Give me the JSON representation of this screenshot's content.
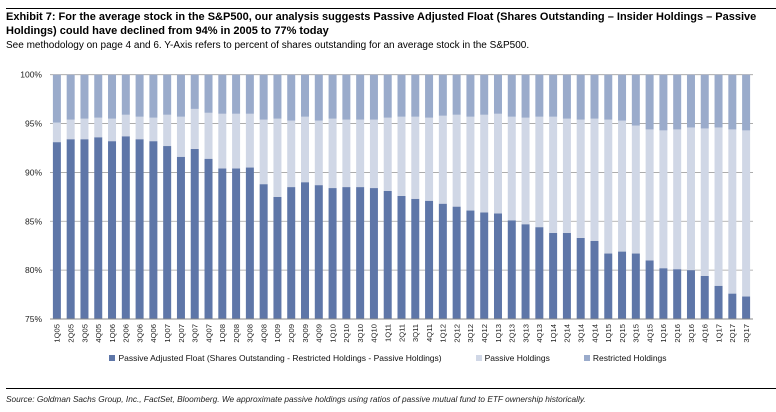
{
  "title": "Exhibit 7: For the average stock in the S&P500, our analysis suggests Passive Adjusted Float (Shares Outstanding – Insider Holdings – Passive Holdings) could have declined from 94% in 2005 to 77% today",
  "subtitle": "See methodology on page 4 and 6. Y-Axis refers to percent of shares outstanding for an average stock in the S&P500.",
  "source": "Source: Goldman Sachs Group, Inc., FactSet, Bloomberg. We approximate passive holdings using ratios of passive mutual fund to ETF ownership historically.",
  "chart_data": {
    "type": "bar",
    "stacked": true,
    "ylim": [
      75,
      100
    ],
    "yticks": [
      "75%",
      "80%",
      "85%",
      "90%",
      "95%",
      "100%"
    ],
    "grid": true,
    "legend_position": "bottom",
    "categories": [
      "1Q05",
      "2Q05",
      "3Q05",
      "4Q05",
      "1Q06",
      "2Q06",
      "3Q06",
      "4Q06",
      "1Q07",
      "2Q07",
      "3Q07",
      "4Q07",
      "1Q08",
      "2Q08",
      "3Q08",
      "4Q08",
      "1Q09",
      "2Q09",
      "3Q09",
      "4Q09",
      "1Q10",
      "2Q10",
      "3Q10",
      "4Q10",
      "1Q11",
      "2Q11",
      "3Q11",
      "4Q11",
      "1Q12",
      "2Q12",
      "3Q12",
      "4Q12",
      "1Q13",
      "2Q13",
      "3Q13",
      "4Q13",
      "1Q14",
      "2Q14",
      "3Q14",
      "4Q14",
      "1Q15",
      "2Q15",
      "3Q15",
      "4Q15",
      "1Q16",
      "2Q16",
      "3Q16",
      "4Q16",
      "1Q17",
      "2Q17",
      "3Q17"
    ],
    "series": [
      {
        "name": "Passive Adjusted Float (Shares Outstanding - Restricted Holdings - Passive Holdings)",
        "color": "#5e76a8",
        "cumulative_top": [
          93.1,
          93.4,
          93.4,
          93.6,
          93.2,
          93.7,
          93.4,
          93.2,
          92.7,
          91.6,
          92.4,
          91.4,
          90.4,
          90.4,
          90.5,
          88.8,
          87.5,
          88.5,
          89.0,
          88.7,
          88.4,
          88.5,
          88.5,
          88.4,
          88.1,
          87.6,
          87.3,
          87.1,
          86.8,
          86.5,
          86.1,
          85.9,
          85.8,
          85.1,
          84.7,
          84.4,
          83.8,
          83.8,
          83.3,
          83.0,
          81.7,
          81.9,
          81.7,
          81.0,
          80.2,
          80.1,
          80.0,
          79.4,
          78.4,
          77.6,
          77.3
        ]
      },
      {
        "name": "Passive Holdings",
        "color": "#d0d7e6",
        "cumulative_top": [
          95.1,
          95.4,
          95.5,
          95.6,
          95.5,
          95.9,
          95.7,
          95.6,
          95.9,
          95.7,
          96.5,
          96.1,
          96.0,
          96.0,
          96.0,
          95.4,
          95.5,
          95.3,
          95.7,
          95.3,
          95.5,
          95.4,
          95.4,
          95.4,
          95.6,
          95.7,
          95.7,
          95.6,
          95.8,
          95.9,
          95.7,
          95.9,
          96.0,
          95.7,
          95.6,
          95.7,
          95.7,
          95.5,
          95.4,
          95.5,
          95.4,
          95.3,
          94.8,
          94.4,
          94.3,
          94.4,
          94.6,
          94.5,
          94.6,
          94.4,
          94.3
        ]
      },
      {
        "name": "Restricted Holdings",
        "color": "#9aabcb",
        "cumulative_top": [
          100,
          100,
          100,
          100,
          100,
          100,
          100,
          100,
          100,
          100,
          100,
          100,
          100,
          100,
          100,
          100,
          100,
          100,
          100,
          100,
          100,
          100,
          100,
          100,
          100,
          100,
          100,
          100,
          100,
          100,
          100,
          100,
          100,
          100,
          100,
          100,
          100,
          100,
          100,
          100,
          100,
          100,
          100,
          100,
          100,
          100,
          100,
          100,
          100,
          100,
          100
        ]
      }
    ]
  }
}
